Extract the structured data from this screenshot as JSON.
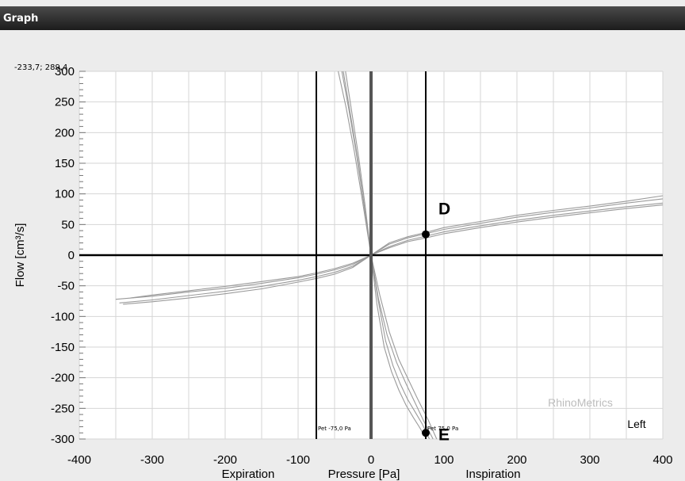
{
  "window": {
    "title": "Graph"
  },
  "cursor_readout": "-233,7; 289,4",
  "brand_watermark": "RhinoMetrics",
  "side_label": "Left",
  "markers": [
    {
      "label": "D",
      "x": 75,
      "y": 34
    },
    {
      "label": "E",
      "x": 75,
      "y": -290
    }
  ],
  "reference_lines": [
    {
      "x": -75,
      "label": "Pet -75,0 Pa"
    },
    {
      "x": 75,
      "label": "Pet 75,0 Pa"
    }
  ],
  "colors": {
    "curve": "#9a9a9a",
    "grid": "#d6d6d6",
    "axis": "#000000",
    "center_line": "#555555",
    "watermark": "#bdbdbd"
  },
  "chart_data": {
    "type": "line",
    "xlabel": "Pressure [Pa]",
    "xlabel_left": "Expiration",
    "xlabel_right": "Inspiration",
    "ylabel": "Flow [cm³/s]",
    "xlim": [
      -400,
      400
    ],
    "ylim": [
      -300,
      300
    ],
    "xticks": [
      -400,
      -300,
      -200,
      -100,
      0,
      100,
      200,
      300,
      400
    ],
    "yticks": [
      300,
      250,
      200,
      150,
      100,
      50,
      0,
      -50,
      -100,
      -150,
      -200,
      -250,
      -300
    ],
    "grid": true,
    "series": [
      {
        "x": [
          -350,
          -300,
          -250,
          -200,
          -150,
          -100,
          -75,
          -50,
          -25,
          0,
          25,
          50,
          75,
          100,
          150,
          200,
          250,
          300,
          350,
          400
        ],
        "y": [
          -72,
          -67,
          -60,
          -54,
          -46,
          -37,
          -31,
          -24,
          -15,
          0,
          18,
          28,
          35,
          42,
          52,
          62,
          70,
          77,
          85,
          92
        ]
      },
      {
        "x": [
          -345,
          -300,
          -250,
          -200,
          -150,
          -100,
          -75,
          -50,
          -25,
          0,
          25,
          50,
          75,
          100,
          150,
          200,
          250,
          300,
          350,
          400
        ],
        "y": [
          -78,
          -73,
          -66,
          -59,
          -51,
          -41,
          -35,
          -28,
          -18,
          0,
          14,
          24,
          31,
          38,
          48,
          57,
          65,
          72,
          79,
          85
        ]
      },
      {
        "x": [
          -340,
          -300,
          -250,
          -200,
          -150,
          -100,
          -75,
          -50,
          -25,
          0,
          25,
          50,
          75,
          100,
          150,
          200,
          250,
          300,
          350,
          400
        ],
        "y": [
          -80,
          -76,
          -70,
          -63,
          -55,
          -44,
          -38,
          -31,
          -20,
          0,
          12,
          22,
          28,
          35,
          45,
          54,
          62,
          69,
          76,
          82
        ]
      },
      {
        "x": [
          -330,
          -300,
          -250,
          -200,
          -150,
          -100,
          -75,
          -50,
          -25,
          0,
          25,
          50,
          75,
          100,
          150,
          200,
          250,
          300,
          350,
          400
        ],
        "y": [
          -70,
          -65,
          -58,
          -51,
          -43,
          -35,
          -29,
          -22,
          -13,
          0,
          20,
          30,
          37,
          45,
          55,
          65,
          73,
          80,
          88,
          97
        ]
      },
      {
        "x": [
          -40,
          -30,
          -20,
          -10,
          0,
          10,
          20,
          30,
          40,
          50,
          60,
          70,
          80
        ],
        "y": [
          300,
          235,
          165,
          85,
          0,
          -75,
          -140,
          -180,
          -210,
          -235,
          -255,
          -275,
          -300
        ]
      },
      {
        "x": [
          -35,
          -26,
          -17,
          -8,
          0,
          10,
          22,
          35,
          48,
          60,
          72,
          85
        ],
        "y": [
          300,
          230,
          160,
          80,
          0,
          -70,
          -130,
          -175,
          -210,
          -240,
          -270,
          -300
        ]
      },
      {
        "x": [
          -45,
          -34,
          -23,
          -12,
          0,
          8,
          18,
          28,
          38,
          48,
          58,
          66,
          76
        ],
        "y": [
          300,
          240,
          170,
          90,
          0,
          -80,
          -150,
          -190,
          -220,
          -245,
          -265,
          -280,
          -300
        ]
      },
      {
        "x": [
          -38,
          -28,
          -18,
          -9,
          0,
          12,
          25,
          38,
          52,
          64,
          78,
          90
        ],
        "y": [
          300,
          228,
          155,
          78,
          0,
          -65,
          -125,
          -170,
          -205,
          -235,
          -268,
          -300
        ]
      }
    ]
  }
}
